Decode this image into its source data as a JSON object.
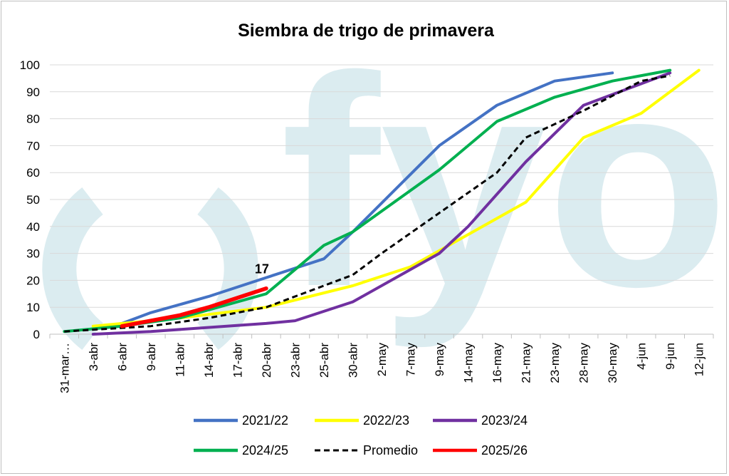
{
  "chart_data": {
    "type": "line",
    "title": "Siembra de trigo de primavera",
    "xlabel": "",
    "ylabel": "",
    "ylim": [
      0,
      100
    ],
    "yticks": [
      0,
      10,
      20,
      30,
      40,
      50,
      60,
      70,
      80,
      90,
      100
    ],
    "grid": true,
    "legend_position": "bottom",
    "categories": [
      "31-mar…",
      "3-abr",
      "6-abr",
      "9-abr",
      "11-abr",
      "14-abr",
      "17-abr",
      "20-abr",
      "23-abr",
      "25-abr",
      "30-abr",
      "2-may",
      "7-may",
      "9-may",
      "14-may",
      "16-may",
      "21-may",
      "23-may",
      "28-may",
      "30-may",
      "4-jun",
      "9-jun",
      "12-jun"
    ],
    "watermark": "fyo",
    "series": [
      {
        "name": "2021/22",
        "color": "#4472C4",
        "dashed": false,
        "points": [
          [
            "3-abr",
            2
          ],
          [
            "6-abr",
            4
          ],
          [
            "9-abr",
            8
          ],
          [
            "14-abr",
            14
          ],
          [
            "20-abr",
            21
          ],
          [
            "25-abr",
            28
          ],
          [
            "30-abr",
            38
          ],
          [
            "9-may",
            70
          ],
          [
            "16-may",
            85
          ],
          [
            "23-may",
            94
          ],
          [
            "30-may",
            97
          ]
        ]
      },
      {
        "name": "2022/23",
        "color": "#FFFF00",
        "dashed": false,
        "points": [
          [
            "3-abr",
            3
          ],
          [
            "11-abr",
            6
          ],
          [
            "20-abr",
            10
          ],
          [
            "30-abr",
            18
          ],
          [
            "7-may",
            25
          ],
          [
            "14-may",
            37
          ],
          [
            "21-may",
            49
          ],
          [
            "28-may",
            73
          ],
          [
            "4-jun",
            82
          ],
          [
            "12-jun",
            98
          ]
        ]
      },
      {
        "name": "2023/24",
        "color": "#7030A0",
        "dashed": false,
        "points": [
          [
            "3-abr",
            0
          ],
          [
            "9-abr",
            1
          ],
          [
            "20-abr",
            4
          ],
          [
            "23-abr",
            5
          ],
          [
            "30-abr",
            12
          ],
          [
            "7-may",
            24
          ],
          [
            "9-may",
            30
          ],
          [
            "14-may",
            40
          ],
          [
            "21-may",
            64
          ],
          [
            "28-may",
            85
          ],
          [
            "4-jun",
            93
          ],
          [
            "9-jun",
            97
          ]
        ]
      },
      {
        "name": "2024/25",
        "color": "#00B050",
        "dashed": false,
        "points": [
          [
            "31-mar…",
            1
          ],
          [
            "6-abr",
            3
          ],
          [
            "11-abr",
            6
          ],
          [
            "20-abr",
            15
          ],
          [
            "25-abr",
            33
          ],
          [
            "30-abr",
            38
          ],
          [
            "9-may",
            61
          ],
          [
            "16-may",
            79
          ],
          [
            "23-may",
            88
          ],
          [
            "30-may",
            94
          ],
          [
            "9-jun",
            98
          ]
        ]
      },
      {
        "name": "Promedio",
        "color": "#000000",
        "dashed": true,
        "points": [
          [
            "31-mar…",
            1
          ],
          [
            "9-abr",
            3
          ],
          [
            "14-abr",
            6
          ],
          [
            "20-abr",
            10
          ],
          [
            "30-abr",
            22
          ],
          [
            "2-may",
            30
          ],
          [
            "9-may",
            45
          ],
          [
            "16-may",
            60
          ],
          [
            "21-may",
            73
          ],
          [
            "28-may",
            83
          ],
          [
            "4-jun",
            94
          ],
          [
            "9-jun",
            96
          ]
        ]
      },
      {
        "name": "2025/26",
        "color": "#FF0000",
        "dashed": false,
        "points": [
          [
            "6-abr",
            3
          ],
          [
            "11-abr",
            7
          ],
          [
            "14-abr",
            10
          ],
          [
            "20-abr",
            17
          ]
        ]
      }
    ],
    "annotations": [
      {
        "series": "2025/26",
        "x": "20-abr",
        "y": 17,
        "text": "17"
      }
    ]
  }
}
